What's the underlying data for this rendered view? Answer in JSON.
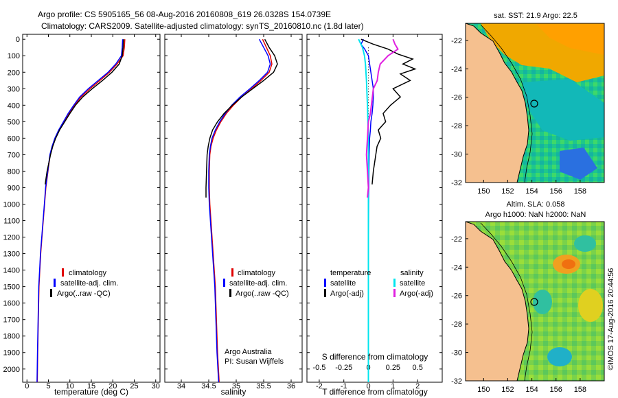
{
  "header": {
    "line1": "Argo profile: CS 5905165_56 08-Aug-2016 20160808_619 26.0328S 154.0739E",
    "line2": "Climatology: CARS2009. Satellite-adjusted climatology: synTS_20160810.nc (1.8d later)"
  },
  "colors": {
    "climatology": "#e00000",
    "satellite": "#0000ff",
    "argo": "#000000",
    "sat_salinity": "#00e5ee",
    "argo_salinity": "#e020e0",
    "land": "#f5c08f"
  },
  "chart_data": [
    {
      "type": "line",
      "title": "",
      "xlabel": "temperature (deg C)",
      "ylabel": "",
      "xlim": [
        -1,
        31
      ],
      "ylim": [
        0,
        2080
      ],
      "y_reversed": true,
      "xticks": [
        0,
        5,
        10,
        15,
        20,
        25,
        30
      ],
      "yticks": [
        0,
        100,
        200,
        300,
        400,
        500,
        600,
        700,
        800,
        900,
        1000,
        1100,
        1200,
        1300,
        1400,
        1500,
        1600,
        1700,
        1800,
        1900,
        2000
      ],
      "legend": [
        "climatology",
        "satellite-adj. clim.",
        "Argo(..raw -QC)"
      ],
      "series": [
        {
          "name": "climatology",
          "x": [
            22.8,
            22.7,
            22.4,
            21.0,
            19.2,
            17.0,
            14.7,
            12.6,
            11.1,
            9.8,
            8.6,
            7.5,
            6.6,
            5.9,
            5.4,
            4.9,
            4.4,
            4.1,
            3.8,
            3.5,
            3.2,
            3.0,
            2.8,
            2.65,
            2.5,
            2.4
          ],
          "y": [
            0,
            50,
            100,
            150,
            200,
            250,
            300,
            350,
            400,
            450,
            500,
            550,
            600,
            650,
            700,
            800,
            900,
            1000,
            1100,
            1200,
            1300,
            1400,
            1500,
            1700,
            1900,
            2080
          ]
        },
        {
          "name": "satellite-adj. clim.",
          "x": [
            22.3,
            22.2,
            22.0,
            20.7,
            18.9,
            16.6,
            14.3,
            12.3,
            10.9,
            9.6,
            8.5,
            7.4,
            6.5,
            5.85,
            5.35,
            4.85,
            4.35,
            4.05,
            3.75,
            3.45,
            3.15,
            2.95,
            2.75,
            2.6,
            2.45,
            2.35
          ],
          "y": [
            0,
            50,
            100,
            150,
            200,
            250,
            300,
            350,
            400,
            450,
            500,
            550,
            600,
            650,
            700,
            800,
            900,
            1000,
            1100,
            1200,
            1300,
            1400,
            1500,
            1700,
            1900,
            2080
          ]
        },
        {
          "name": "Argo(..raw -QC)",
          "x": [
            22.5,
            22.4,
            22.2,
            21.5,
            19.8,
            17.6,
            15.2,
            13.0,
            11.3,
            10.0,
            8.8,
            7.6,
            6.7,
            6.0,
            5.5,
            5.1,
            4.7,
            4.4,
            4.25
          ],
          "y": [
            0,
            50,
            100,
            150,
            200,
            250,
            300,
            350,
            400,
            450,
            500,
            550,
            600,
            650,
            700,
            750,
            800,
            850,
            880
          ]
        }
      ]
    },
    {
      "type": "line",
      "title": "",
      "xlabel": "salinity",
      "ylabel": "",
      "xlim": [
        33.7,
        36.2
      ],
      "ylim": [
        0,
        2080
      ],
      "y_reversed": true,
      "xticks": [
        34,
        34.5,
        35,
        35.5,
        36
      ],
      "legend": [
        "climatology",
        "satellite-adj. clim.",
        "Argo(..raw -QC)"
      ],
      "annotation": [
        "Argo Australia",
        "PI: Susan Wijffels"
      ],
      "series": [
        {
          "name": "climatology",
          "x": [
            35.48,
            35.55,
            35.62,
            35.65,
            35.6,
            35.45,
            35.28,
            35.1,
            34.95,
            34.82,
            34.72,
            34.64,
            34.58,
            34.54,
            34.52,
            34.51,
            34.51,
            34.52,
            34.54,
            34.56,
            34.58,
            34.6,
            34.62,
            34.64,
            34.66,
            34.69
          ],
          "y": [
            0,
            50,
            100,
            150,
            200,
            250,
            300,
            350,
            400,
            450,
            500,
            550,
            600,
            650,
            700,
            800,
            900,
            1000,
            1100,
            1200,
            1300,
            1400,
            1500,
            1700,
            1900,
            2080
          ]
        },
        {
          "name": "satellite-adj. clim.",
          "x": [
            35.42,
            35.5,
            35.58,
            35.62,
            35.57,
            35.42,
            35.25,
            35.07,
            34.92,
            34.8,
            34.7,
            34.62,
            34.56,
            34.53,
            34.51,
            34.5,
            34.5,
            34.51,
            34.53,
            34.55,
            34.57,
            34.59,
            34.61,
            34.63,
            34.65,
            34.68
          ],
          "y": [
            0,
            50,
            100,
            150,
            200,
            250,
            300,
            350,
            400,
            450,
            500,
            550,
            600,
            650,
            700,
            800,
            900,
            1000,
            1100,
            1200,
            1300,
            1400,
            1500,
            1700,
            1900,
            2080
          ]
        },
        {
          "name": "Argo(..raw -QC)",
          "x": [
            35.52,
            35.6,
            35.7,
            35.75,
            35.68,
            35.5,
            35.3,
            35.1,
            34.93,
            34.78,
            34.66,
            34.57,
            34.52,
            34.49,
            34.47,
            34.46,
            34.45,
            34.45
          ],
          "y": [
            0,
            50,
            100,
            150,
            200,
            250,
            300,
            350,
            400,
            450,
            500,
            550,
            600,
            650,
            700,
            800,
            900,
            960
          ]
        }
      ]
    },
    {
      "type": "line",
      "title": "",
      "xlabel": "T difference from climatology",
      "xlabel_top": "S difference from climatology",
      "ylabel": "",
      "xlim": [
        -2.5,
        3.0
      ],
      "ylim": [
        0,
        2080
      ],
      "y_reversed": true,
      "xticks": [
        -2,
        -1,
        0,
        1,
        2
      ],
      "xticks_salinity": [
        -0.5,
        -0.25,
        0,
        0.25,
        0.5
      ],
      "legend": {
        "temperature": [
          "satellite",
          "Argo(-adj)"
        ],
        "salinity": [
          "satellite",
          "Argo(-adj)"
        ]
      },
      "legend_headers": [
        "temperature",
        "salinity"
      ],
      "series": [
        {
          "name": "temperature satellite",
          "x": [
            -0.2,
            -0.3,
            -0.15,
            0.0,
            0.05,
            0.1,
            0.15,
            0.2,
            0.2,
            0.18,
            0.15,
            0.1,
            0.08,
            0.05,
            0.03,
            0.02,
            0.01,
            0.0,
            0.0
          ],
          "y": [
            0,
            30,
            60,
            100,
            150,
            200,
            250,
            300,
            350,
            400,
            450,
            500,
            550,
            600,
            700,
            800,
            1000,
            1500,
            2080
          ]
        },
        {
          "name": "temperature Argo(-adj)",
          "x": [
            -0.3,
            0.2,
            0.8,
            1.2,
            1.8,
            1.4,
            1.9,
            1.3,
            1.7,
            1.0,
            1.3,
            0.9,
            0.6,
            0.7,
            0.4,
            0.5,
            0.35,
            0.3,
            0.25,
            0.2,
            0.15
          ],
          "y": [
            0,
            30,
            60,
            90,
            120,
            150,
            180,
            210,
            250,
            300,
            350,
            400,
            450,
            500,
            550,
            600,
            650,
            700,
            750,
            800,
            880
          ]
        },
        {
          "name": "salinity satellite",
          "x": [
            -0.1,
            -0.06,
            -0.04,
            -0.03,
            -0.02,
            -0.01,
            0.0,
            0.0,
            0.0,
            0.0
          ],
          "y": [
            0,
            50,
            100,
            150,
            250,
            400,
            600,
            900,
            1500,
            2080
          ]
        },
        {
          "name": "salinity Argo(-adj)",
          "x": [
            0.25,
            0.27,
            0.3,
            0.2,
            0.12,
            0.1,
            0.09,
            0.05,
            0.04,
            0.02,
            0.0,
            -0.01,
            -0.02,
            -0.01,
            0.0,
            -0.01
          ],
          "y": [
            0,
            30,
            60,
            100,
            150,
            200,
            250,
            300,
            350,
            450,
            500,
            600,
            700,
            800,
            900,
            960
          ]
        }
      ]
    }
  ],
  "maps": [
    {
      "title": "sat. SST: 21.9  Argo: 22.5",
      "lat_ticks": [
        "-22",
        "-24",
        "-26",
        "-28",
        "-30",
        "-32"
      ],
      "lon_ticks": [
        "150",
        "152",
        "154",
        "156",
        "158"
      ],
      "profile": {
        "lon": 154.07,
        "lat": -26.03
      }
    },
    {
      "title_line1": "Altim. SLA: 0.058",
      "title_line2": "Argo h1000: NaN h2000: NaN",
      "lat_ticks": [
        "-22",
        "-24",
        "-26",
        "-28",
        "-30",
        "-32"
      ],
      "lon_ticks": [
        "150",
        "152",
        "154",
        "156",
        "158"
      ],
      "profile": {
        "lon": 154.07,
        "lat": -26.03
      }
    }
  ],
  "credit": "©IMOS 17-Aug-2016 20:44:56"
}
